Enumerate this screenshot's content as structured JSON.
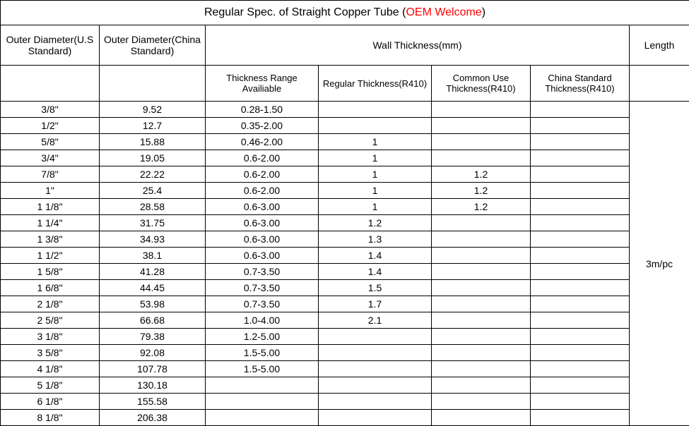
{
  "title": {
    "main": "Regular Spec. of Straight Copper Tube (",
    "oem": "OEM Welcome",
    "close": ")"
  },
  "headers": {
    "od_us": "Outer Diameter(U.S Standard)",
    "od_cn": "Outer Diameter(China Standard)",
    "wall": "Wall Thickness(mm)",
    "length": "Length"
  },
  "subheaders": {
    "range": "Thickness Range Availiable",
    "regular": "Regular Thickness(R410)",
    "common": "Common Use Thickness(R410)",
    "china": "China Standard Thickness(R410)"
  },
  "length_value": "3m/pc",
  "rows": [
    {
      "us": "3/8\"",
      "cn": "9.52",
      "range": "0.28-1.50",
      "regular": "",
      "common": "",
      "china": ""
    },
    {
      "us": "1/2\"",
      "cn": "12.7",
      "range": "0.35-2.00",
      "regular": "",
      "common": "",
      "china": ""
    },
    {
      "us": "5/8\"",
      "cn": "15.88",
      "range": "0.46-2.00",
      "regular": "1",
      "common": "",
      "china": ""
    },
    {
      "us": "3/4\"",
      "cn": "19.05",
      "range": "0.6-2.00",
      "regular": "1",
      "common": "",
      "china": ""
    },
    {
      "us": "7/8\"",
      "cn": "22.22",
      "range": "0.6-2.00",
      "regular": "1",
      "common": "1.2",
      "china": ""
    },
    {
      "us": "1\"",
      "cn": "25.4",
      "range": "0.6-2.00",
      "regular": "1",
      "common": "1.2",
      "china": ""
    },
    {
      "us": "1 1/8\"",
      "cn": "28.58",
      "range": "0.6-3.00",
      "regular": "1",
      "common": "1.2",
      "china": ""
    },
    {
      "us": "1 1/4\"",
      "cn": "31.75",
      "range": "0.6-3.00",
      "regular": "1.2",
      "common": "",
      "china": ""
    },
    {
      "us": "1 3/8\"",
      "cn": "34.93",
      "range": "0.6-3.00",
      "regular": "1.3",
      "common": "",
      "china": ""
    },
    {
      "us": "1 1/2\"",
      "cn": "38.1",
      "range": "0.6-3.00",
      "regular": "1.4",
      "common": "",
      "china": ""
    },
    {
      "us": "1 5/8\"",
      "cn": "41.28",
      "range": "0.7-3.50",
      "regular": "1.4",
      "common": "",
      "china": ""
    },
    {
      "us": "1 6/8\"",
      "cn": "44.45",
      "range": "0.7-3.50",
      "regular": "1.5",
      "common": "",
      "china": ""
    },
    {
      "us": "2 1/8\"",
      "cn": "53.98",
      "range": "0.7-3.50",
      "regular": "1.7",
      "common": "",
      "china": ""
    },
    {
      "us": "2 5/8\"",
      "cn": "66.68",
      "range": "1.0-4.00",
      "regular": "2.1",
      "common": "",
      "china": ""
    },
    {
      "us": "3 1/8\"",
      "cn": "79.38",
      "range": "1.2-5.00",
      "regular": "",
      "common": "",
      "china": ""
    },
    {
      "us": "3 5/8\"",
      "cn": "92.08",
      "range": "1.5-5.00",
      "regular": "",
      "common": "",
      "china": ""
    },
    {
      "us": "4 1/8\"",
      "cn": "107.78",
      "range": "1.5-5.00",
      "regular": "",
      "common": "",
      "china": ""
    },
    {
      "us": "5 1/8\"",
      "cn": "130.18",
      "range": "",
      "regular": "",
      "common": "",
      "china": ""
    },
    {
      "us": "6 1/8\"",
      "cn": "155.58",
      "range": "",
      "regular": "",
      "common": "",
      "china": ""
    },
    {
      "us": "8 1/8\"",
      "cn": "206.38",
      "range": "",
      "regular": "",
      "common": "",
      "china": ""
    }
  ]
}
